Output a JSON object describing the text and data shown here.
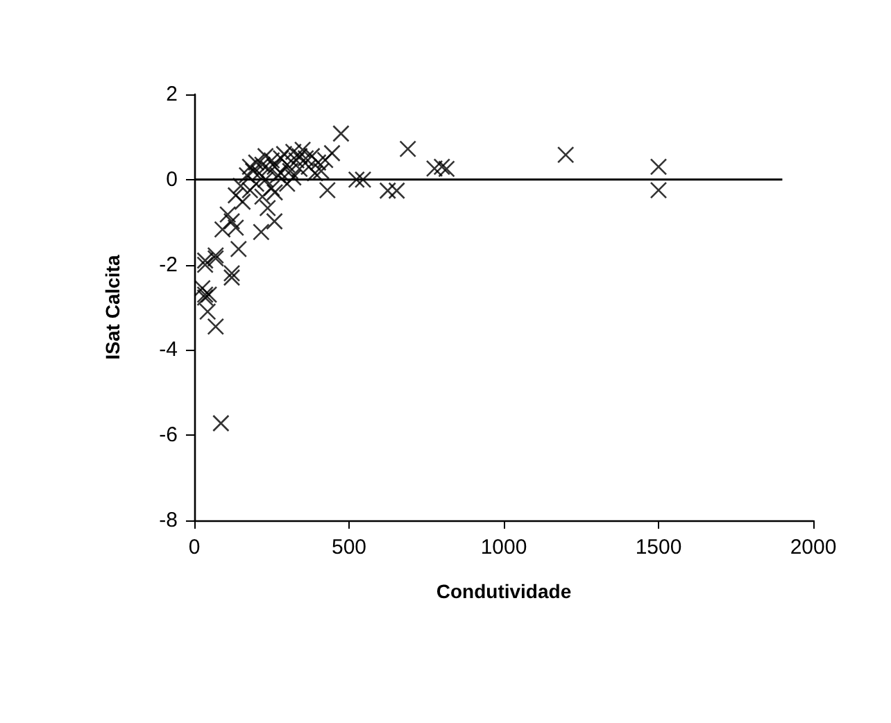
{
  "chart_data": {
    "type": "scatter",
    "xlabel": "Condutividade",
    "ylabel": "ISat Calcita",
    "xlim": [
      0,
      2000
    ],
    "xticks": [
      0,
      500,
      1000,
      1500,
      2000
    ],
    "ylim": [
      -8,
      2
    ],
    "yticks": [
      -8,
      -6,
      -4,
      -2,
      0,
      2
    ],
    "grid": false,
    "marker": "cross",
    "series": [
      {
        "color": "#000000",
        "x": [
          474,
          690,
          776,
          800,
          815,
          1200,
          1500,
          1500,
          524,
          545,
          625,
          654,
          430,
          423,
          445,
          134,
          156,
          237,
          259,
          216,
          108,
          121,
          91,
          134,
          69,
          35,
          143,
          121,
          26,
          35,
          35,
          69,
          121,
          35,
          43,
          69,
          86,
          47,
          170,
          180,
          190,
          200,
          210,
          220,
          230,
          240,
          250,
          260,
          270,
          280,
          290,
          300,
          310,
          320,
          330,
          340,
          350,
          360,
          370,
          380,
          390,
          400,
          300,
          250,
          200,
          180,
          220,
          260,
          150,
          280,
          320,
          340,
          410,
          230
        ],
        "values": [
          1.08,
          0.72,
          0.26,
          0.3,
          0.25,
          0.58,
          0.3,
          -0.25,
          0,
          0,
          -0.26,
          -0.26,
          -0.25,
          0.46,
          0.62,
          -0.37,
          -0.52,
          -0.67,
          -0.98,
          -1.23,
          -0.82,
          -0.98,
          -1.17,
          -1.13,
          -1.78,
          -1.9,
          -1.63,
          -2.2,
          -2.55,
          -2.77,
          -2.0,
          -1.85,
          -2.3,
          -2.7,
          -3.1,
          -3.45,
          -5.72,
          -2.7,
          0.1,
          0.3,
          0.2,
          0.4,
          0.15,
          0.35,
          0.0,
          0.25,
          0.45,
          0.3,
          0.1,
          0.5,
          0.6,
          0.35,
          0.2,
          0.65,
          0.45,
          0.25,
          0.7,
          0.5,
          0.3,
          0.55,
          0.15,
          0.4,
          -0.1,
          -0.2,
          -0.1,
          -0.25,
          -0.4,
          -0.3,
          -0.15,
          0.15,
          0.05,
          0.55,
          0.2,
          0.55
        ]
      },
      {
        "type": "line",
        "color": "#000000",
        "x": [
          0,
          1900
        ],
        "values": [
          0,
          0
        ],
        "marker": "none"
      }
    ]
  }
}
